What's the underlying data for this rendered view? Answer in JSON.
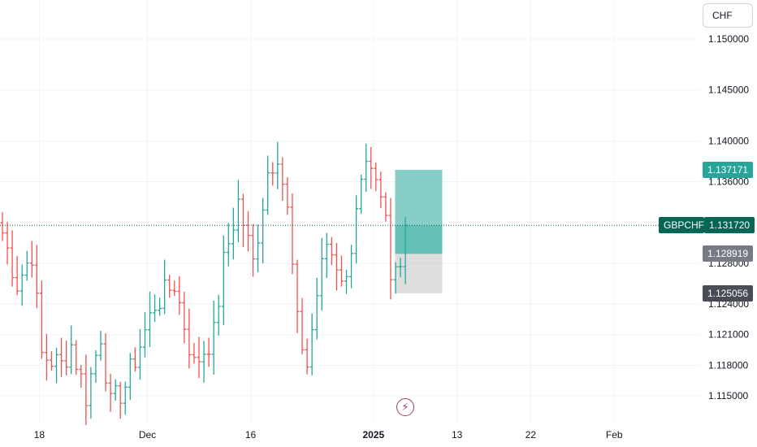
{
  "chart_data": {
    "type": "ohlc",
    "symbol": "GBPCHF",
    "currency": "CHF",
    "ylim": [
      1.1125,
      1.1525
    ],
    "yticks": [
      "1.150000",
      "1.145000",
      "1.140000",
      "1.136000",
      "1.128000",
      "1.124000",
      "1.121000",
      "1.118000",
      "1.115000"
    ],
    "ytick_values": [
      1.15,
      1.145,
      1.14,
      1.136,
      1.128,
      1.124,
      1.121,
      1.118,
      1.115
    ],
    "xticks": [
      {
        "label": "18",
        "bold": false,
        "index": 8
      },
      {
        "label": "Dec",
        "bold": false,
        "index": 30
      },
      {
        "label": "16",
        "bold": false,
        "index": 51
      },
      {
        "label": "2025",
        "bold": true,
        "index": 76
      },
      {
        "label": "13",
        "bold": false,
        "index": 93
      },
      {
        "label": "22",
        "bold": false,
        "index": 108
      },
      {
        "label": "Feb",
        "bold": false,
        "index": 125
      }
    ],
    "current_price": 1.13172,
    "current_price_label": "1.131720",
    "take_profit_label": "1.137171",
    "entry_label": "1.128919",
    "stop_loss_label": "1.125056",
    "position": {
      "entry": 1.128919,
      "take_profit": 1.137171,
      "stop_loss": 1.125056
    },
    "colors": {
      "up": "#26a69a",
      "down": "#ef5350",
      "tp_fill": "#26a69a",
      "sl_fill": "#bdbdbd",
      "current": "#056656",
      "entry": "#787b86",
      "sl": "#4a4c55",
      "tp_label": "#26a69a"
    },
    "anchors": [
      [
        0,
        1.131
      ],
      [
        3,
        1.126
      ],
      [
        6,
        1.129
      ],
      [
        8,
        1.119
      ],
      [
        12,
        1.118
      ],
      [
        14,
        1.12
      ],
      [
        17,
        1.115
      ],
      [
        20,
        1.121
      ],
      [
        22,
        1.114
      ],
      [
        25,
        1.116
      ],
      [
        28,
        1.12
      ],
      [
        31,
        1.124
      ],
      [
        35,
        1.126
      ],
      [
        39,
        1.118
      ],
      [
        43,
        1.121
      ],
      [
        45,
        1.128
      ],
      [
        48,
        1.134
      ],
      [
        51,
        1.128
      ],
      [
        54,
        1.137
      ],
      [
        56,
        1.139
      ],
      [
        58,
        1.133
      ],
      [
        60,
        1.122
      ],
      [
        62,
        1.118
      ],
      [
        64,
        1.125
      ],
      [
        66,
        1.13
      ],
      [
        68,
        1.128
      ],
      [
        70,
        1.126
      ],
      [
        72,
        1.134
      ],
      [
        74,
        1.137
      ],
      [
        76,
        1.135
      ],
      [
        78,
        1.132
      ],
      [
        79,
        1.126
      ],
      [
        81,
        1.129
      ],
      [
        82,
        1.131
      ]
    ],
    "candle_count": 83
  }
}
